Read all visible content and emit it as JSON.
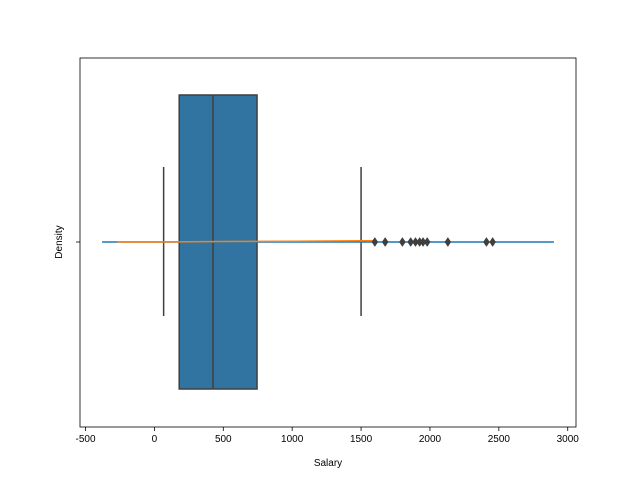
{
  "chart_data": {
    "type": "boxplot",
    "title": "",
    "xlabel": "Salary",
    "ylabel": "Density",
    "xlim": [
      -540,
      3060
    ],
    "x_ticks": [
      -500,
      0,
      500,
      1000,
      1500,
      2000,
      2500,
      3000
    ],
    "x_tick_labels": [
      "-500",
      "0",
      "500",
      "1000",
      "1500",
      "2000",
      "2500",
      "3000"
    ],
    "y_ticks": [
      ""
    ],
    "grid": false,
    "box": {
      "whisker_low": 67,
      "q1": 180,
      "median": 425,
      "q3": 745,
      "whisker_high": 1500,
      "color": "#3274a1",
      "edge_color": "#3f3f3f",
      "outliers": [
        1600,
        1675,
        1800,
        1860,
        1895,
        1925,
        1950,
        1980,
        2130,
        2410,
        2455
      ]
    },
    "lines": [
      {
        "x": [
          -380,
          0,
          500,
          1000,
          1500,
          2000,
          2500,
          2900
        ],
        "y": [
          0.0,
          0.0,
          0.0,
          0.0,
          0.0,
          0.0,
          0.0,
          0.0
        ],
        "color": "#1f77b4"
      },
      {
        "x": [
          -270,
          0,
          500,
          1000,
          1500,
          1600
        ],
        "y": [
          0.0,
          0.0,
          0.003,
          0.005,
          0.008,
          0.008
        ],
        "color": "#ff7f0e"
      }
    ]
  }
}
